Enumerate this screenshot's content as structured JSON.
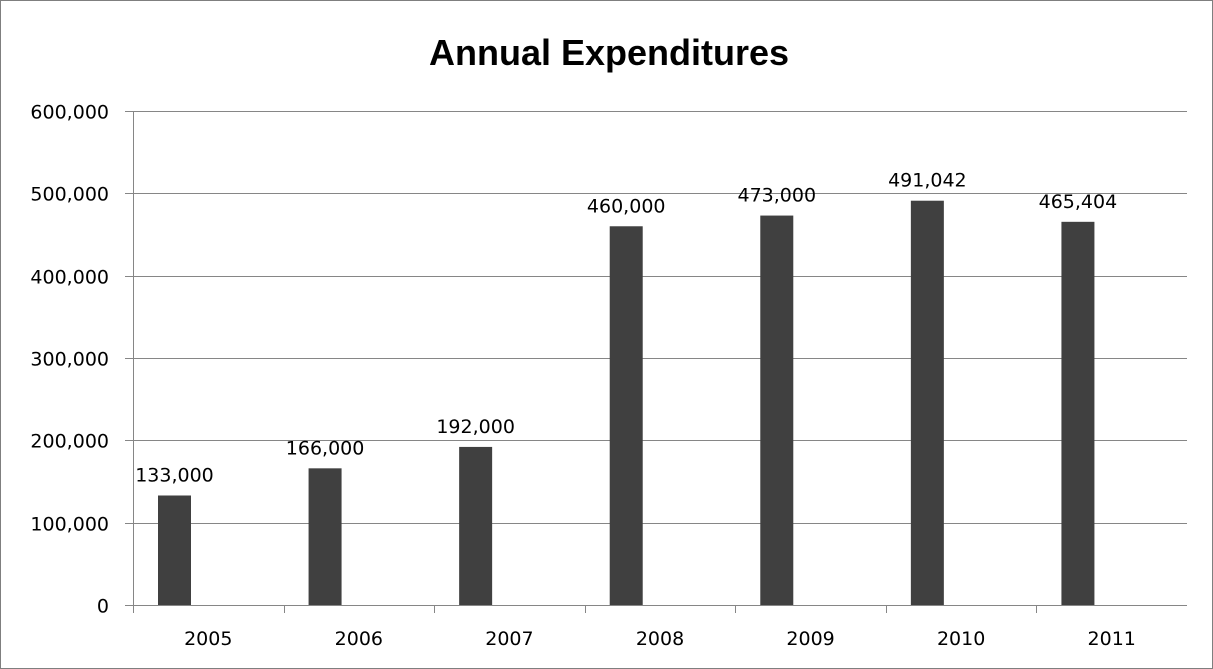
{
  "chart_data": {
    "type": "bar",
    "title": "Annual Expenditures",
    "xlabel": "",
    "ylabel": "",
    "categories": [
      "2005",
      "2006",
      "2007",
      "2008",
      "2009",
      "2010",
      "2011"
    ],
    "values": [
      133000,
      166000,
      192000,
      460000,
      473000,
      491042,
      465404
    ],
    "data_labels": [
      "133,000",
      "166,000",
      "192,000",
      "460,000",
      "473,000",
      "491,042",
      "465,404"
    ],
    "ylim": [
      0,
      600000
    ],
    "yticks": [
      0,
      100000,
      200000,
      300000,
      400000,
      500000,
      600000
    ],
    "ytick_labels": [
      "0",
      "100,000",
      "200,000",
      "300,000",
      "400,000",
      "500,000",
      "600,000"
    ],
    "grid": true,
    "legend": "none",
    "bar_color": "#404040"
  }
}
